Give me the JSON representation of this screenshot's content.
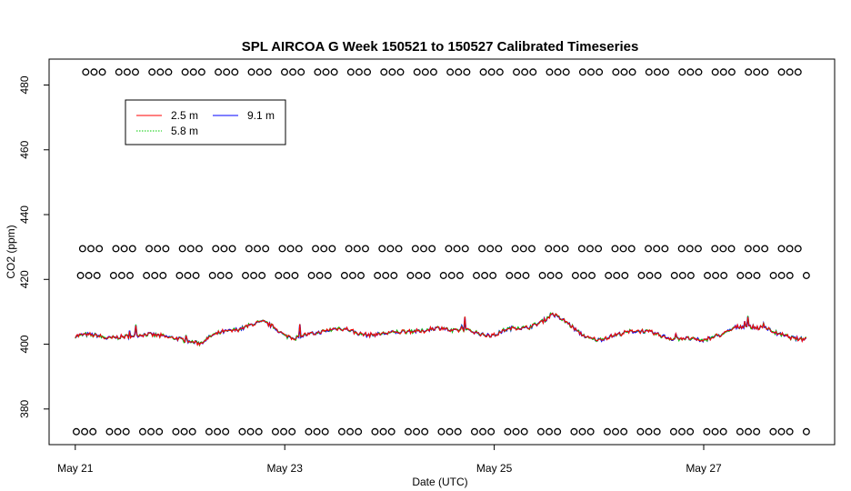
{
  "chart_data": {
    "type": "line",
    "title": "SPL AIRCOA G  Week 150521 to 150527  Calibrated Timeseries",
    "xlabel": "Date (UTC)",
    "ylabel": "CO2 (ppm)",
    "x_ticks": [
      {
        "day": 0,
        "label": "May 21"
      },
      {
        "day": 2,
        "label": "May 23"
      },
      {
        "day": 4,
        "label": "May 25"
      },
      {
        "day": 6,
        "label": "May 27"
      }
    ],
    "y_ticks": [
      380,
      400,
      420,
      440,
      460,
      480
    ],
    "xlim": [
      -0.25,
      7.25
    ],
    "ylim": [
      369,
      488
    ],
    "legend": {
      "placement": "top-left",
      "entries": [
        {
          "name": "2.5 m",
          "color": "#ff0000"
        },
        {
          "name": "5.8 m",
          "color": "#00cd00"
        },
        {
          "name": "9.1 m",
          "color": "#0000ff"
        }
      ]
    },
    "reference_levels": [
      {
        "y": 484,
        "x_start": 0.1,
        "x_end": 6.98
      },
      {
        "y": 429.5,
        "x_start": 0.07,
        "x_end": 6.98
      },
      {
        "y": 421.2,
        "x_start": 0.05,
        "x_end": 6.98
      },
      {
        "y": 373,
        "x_start": 0.01,
        "x_end": 6.98
      }
    ],
    "series_profile": [
      [
        0.0,
        402.5
      ],
      [
        0.1,
        403.0
      ],
      [
        0.2,
        402.8
      ],
      [
        0.3,
        401.8
      ],
      [
        0.4,
        402.1
      ],
      [
        0.55,
        402.6
      ],
      [
        0.7,
        403.1
      ],
      [
        0.85,
        402.4
      ],
      [
        1.0,
        401.6
      ],
      [
        1.1,
        400.7
      ],
      [
        1.2,
        400.3
      ],
      [
        1.3,
        402.6
      ],
      [
        1.4,
        403.8
      ],
      [
        1.5,
        404.2
      ],
      [
        1.6,
        404.9
      ],
      [
        1.7,
        406.3
      ],
      [
        1.8,
        406.9
      ],
      [
        1.9,
        405.2
      ],
      [
        2.0,
        402.6
      ],
      [
        2.1,
        401.9
      ],
      [
        2.2,
        402.9
      ],
      [
        2.3,
        403.4
      ],
      [
        2.4,
        404.1
      ],
      [
        2.5,
        404.9
      ],
      [
        2.6,
        404.6
      ],
      [
        2.7,
        403.3
      ],
      [
        2.8,
        402.8
      ],
      [
        2.9,
        403.1
      ],
      [
        3.0,
        403.5
      ],
      [
        3.1,
        403.8
      ],
      [
        3.2,
        404.1
      ],
      [
        3.3,
        403.9
      ],
      [
        3.4,
        404.8
      ],
      [
        3.5,
        405.1
      ],
      [
        3.6,
        404.0
      ],
      [
        3.7,
        404.6
      ],
      [
        3.8,
        403.9
      ],
      [
        3.9,
        402.8
      ],
      [
        4.0,
        402.7
      ],
      [
        4.1,
        404.4
      ],
      [
        4.2,
        405.2
      ],
      [
        4.3,
        404.9
      ],
      [
        4.4,
        406.1
      ],
      [
        4.5,
        407.8
      ],
      [
        4.55,
        409.5
      ],
      [
        4.6,
        408.5
      ],
      [
        4.7,
        406.6
      ],
      [
        4.8,
        403.8
      ],
      [
        4.9,
        401.8
      ],
      [
        5.0,
        401.3
      ],
      [
        5.1,
        402.3
      ],
      [
        5.2,
        403.2
      ],
      [
        5.3,
        403.9
      ],
      [
        5.4,
        404.1
      ],
      [
        5.5,
        403.6
      ],
      [
        5.6,
        402.6
      ],
      [
        5.7,
        401.6
      ],
      [
        5.8,
        401.9
      ],
      [
        5.9,
        401.5
      ],
      [
        6.0,
        401.1
      ],
      [
        6.1,
        402.3
      ],
      [
        6.2,
        403.3
      ],
      [
        6.3,
        405.2
      ],
      [
        6.4,
        405.6
      ],
      [
        6.5,
        405.1
      ],
      [
        6.6,
        404.9
      ],
      [
        6.7,
        403.3
      ],
      [
        6.8,
        402.3
      ],
      [
        6.9,
        401.6
      ],
      [
        6.98,
        401.6
      ]
    ]
  }
}
